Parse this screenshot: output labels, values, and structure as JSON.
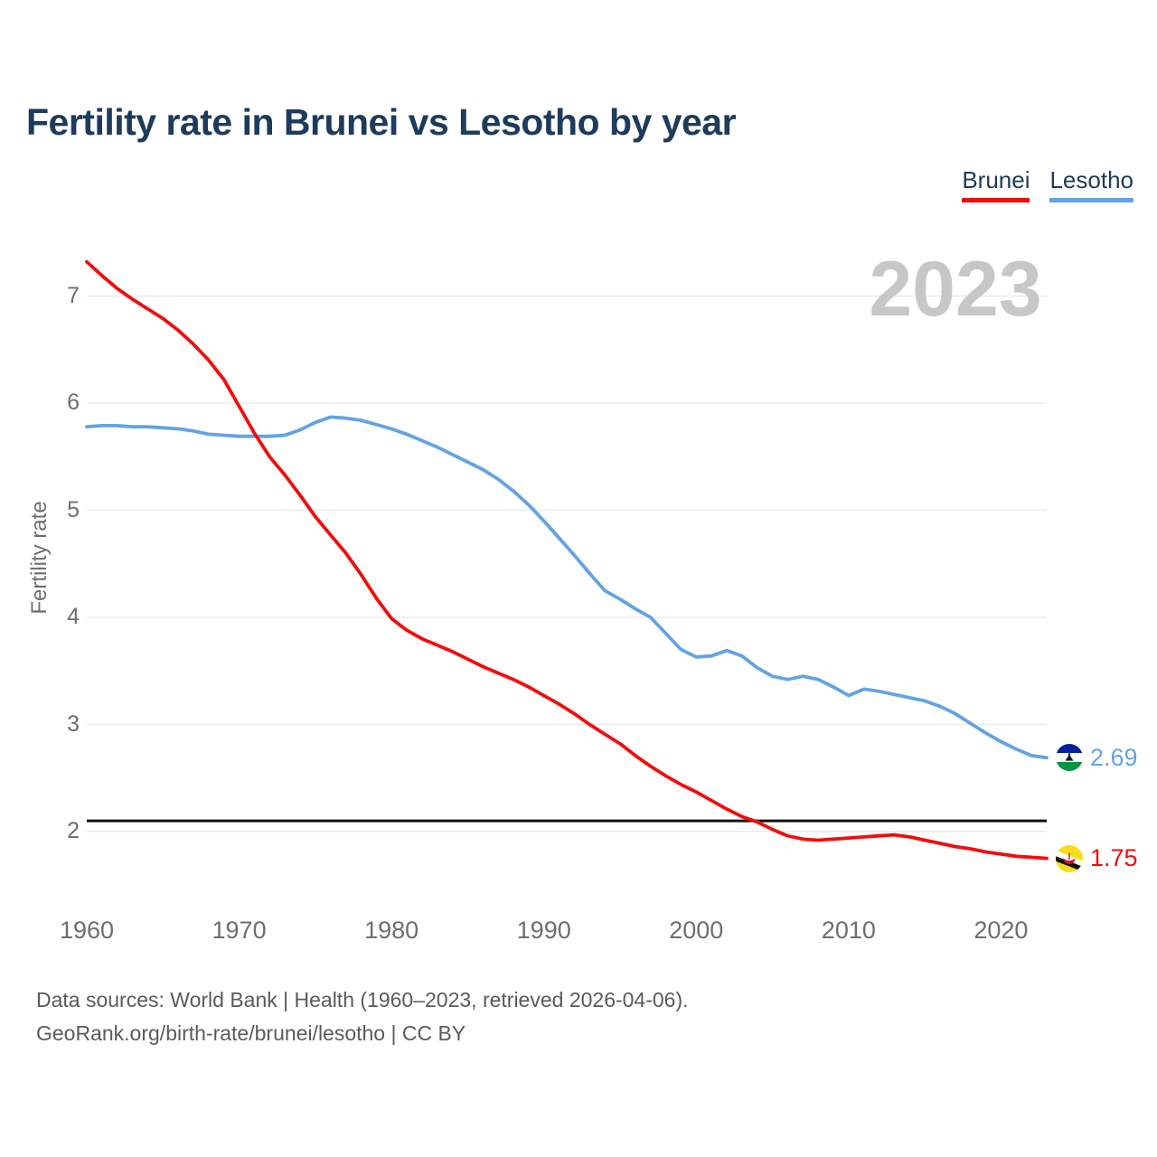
{
  "page": {
    "title": "Fertility rate in Brunei vs Lesotho by year"
  },
  "legend": {
    "items": [
      {
        "label": "Brunei"
      },
      {
        "label": "Lesotho"
      }
    ]
  },
  "footer": {
    "line1": "Data sources: World Bank | Health (1960–2023, retrieved 2026-04-06).",
    "line2": "GeoRank.org/birth-rate/brunei/lesotho | CC BY"
  },
  "chart_data": {
    "type": "line",
    "title": "Fertility rate in Brunei vs Lesotho by year",
    "xlabel": "",
    "ylabel": "Fertility rate",
    "watermark": "2023",
    "year_min": 1960,
    "year_max": 2023,
    "x_ticks": [
      1960,
      1970,
      1980,
      1990,
      2000,
      2010,
      2020
    ],
    "y_ticks": [
      7,
      6,
      5,
      4,
      3,
      2
    ],
    "ylim": [
      1.6,
      7.5
    ],
    "grid": true,
    "legend_position": "top-right",
    "reference_line": 2.1,
    "series": [
      {
        "name": "Brunei",
        "color": "#f20d0d",
        "values": [
          7.32,
          7.19,
          7.07,
          6.97,
          6.88,
          6.79,
          6.68,
          6.55,
          6.4,
          6.22,
          5.97,
          5.72,
          5.5,
          5.33,
          5.14,
          4.94,
          4.77,
          4.6,
          4.4,
          4.18,
          3.99,
          3.88,
          3.8,
          3.74,
          3.68,
          3.61,
          3.54,
          3.48,
          3.42,
          3.35,
          3.27,
          3.19,
          3.1,
          3.0,
          2.91,
          2.82,
          2.71,
          2.61,
          2.52,
          2.44,
          2.37,
          2.29,
          2.21,
          2.14,
          2.09,
          2.02,
          1.96,
          1.93,
          1.92,
          1.93,
          1.94,
          1.95,
          1.96,
          1.97,
          1.95,
          1.92,
          1.89,
          1.86,
          1.84,
          1.81,
          1.79,
          1.77,
          1.76,
          1.75
        ]
      },
      {
        "name": "Lesotho",
        "color": "#63a3e3",
        "values": [
          5.78,
          5.79,
          5.79,
          5.78,
          5.78,
          5.77,
          5.76,
          5.74,
          5.71,
          5.7,
          5.69,
          5.69,
          5.69,
          5.7,
          5.75,
          5.82,
          5.87,
          5.86,
          5.84,
          5.8,
          5.76,
          5.71,
          5.65,
          5.59,
          5.52,
          5.45,
          5.38,
          5.29,
          5.18,
          5.05,
          4.9,
          4.74,
          4.58,
          4.41,
          4.25,
          4.17,
          4.08,
          4.0,
          3.85,
          3.7,
          3.63,
          3.64,
          3.69,
          3.64,
          3.53,
          3.45,
          3.42,
          3.45,
          3.42,
          3.35,
          3.27,
          3.33,
          3.31,
          3.28,
          3.25,
          3.22,
          3.17,
          3.1,
          3.01,
          2.92,
          2.84,
          2.77,
          2.71,
          2.69
        ]
      }
    ],
    "end_labels": {
      "brunei": "1.75",
      "lesotho": "2.69"
    }
  }
}
